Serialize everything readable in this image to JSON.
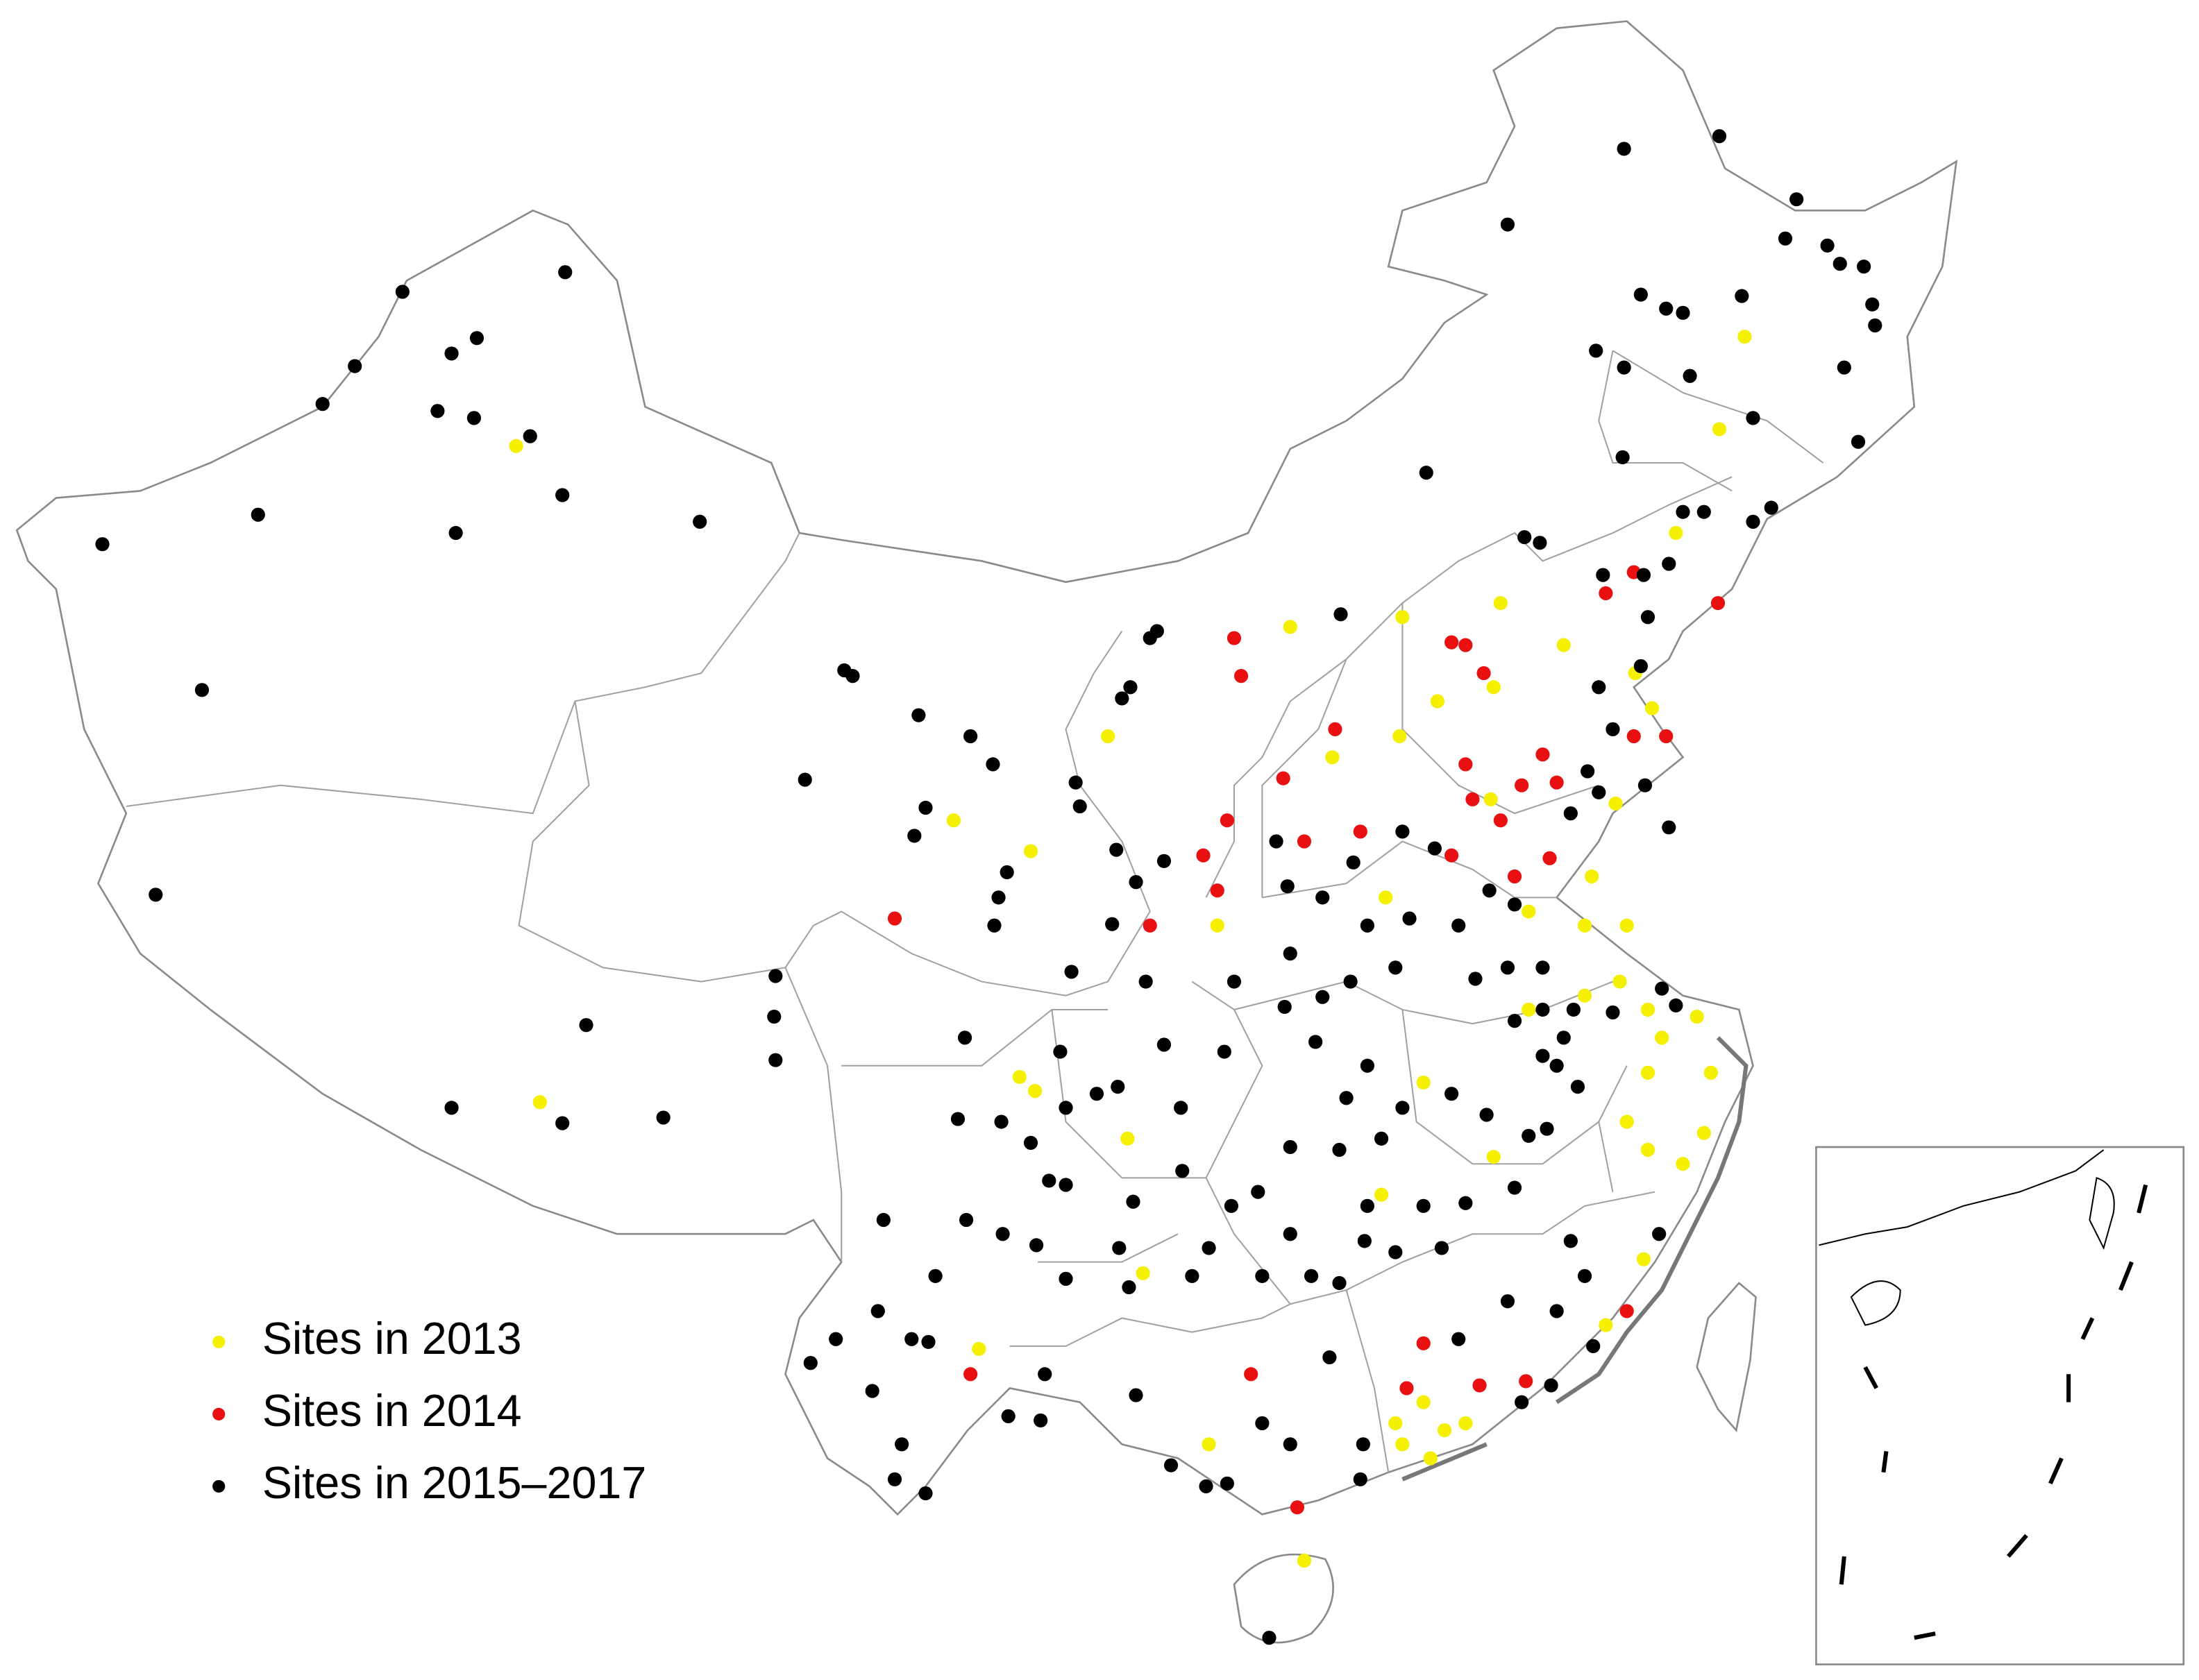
{
  "legend": {
    "items": [
      {
        "label": "Sites in 2013",
        "color": "#f5f000"
      },
      {
        "label": "Sites in 2014",
        "color": "#e81010"
      },
      {
        "label": "Sites in 2015–2017",
        "color": "#000000"
      }
    ]
  }
}
